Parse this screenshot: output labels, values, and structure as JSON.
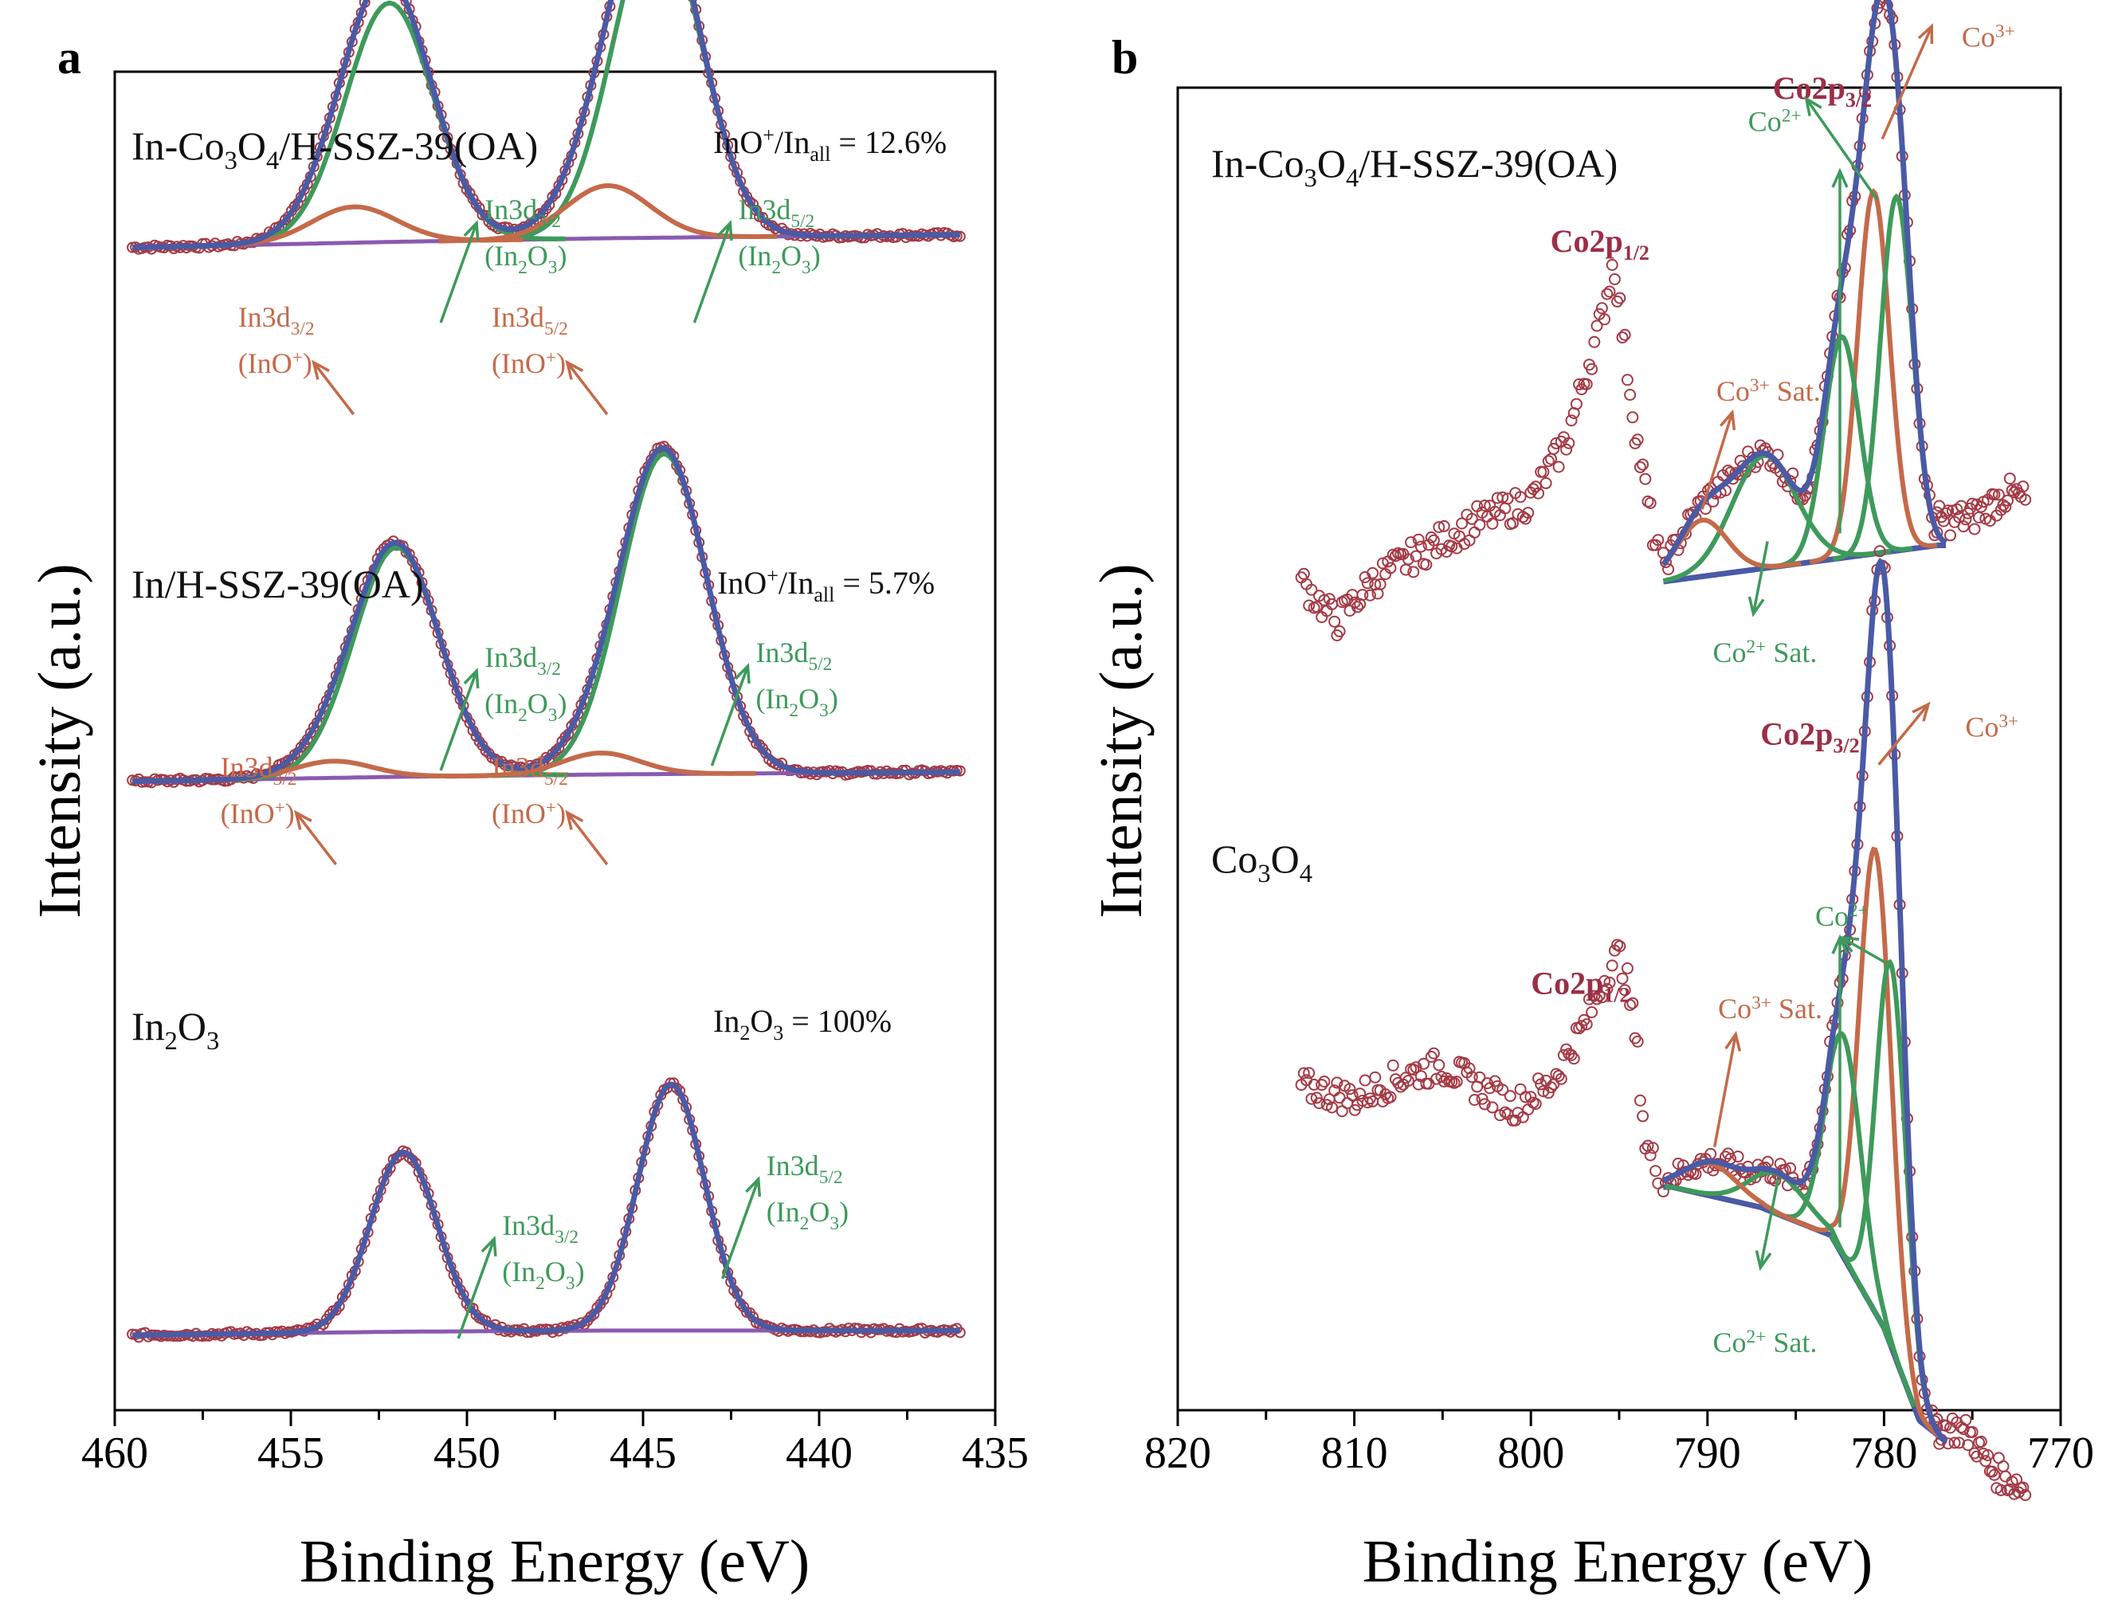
{
  "chart_data": [
    {
      "panel": "a",
      "type": "line",
      "subtype": "XPS spectra (In 3d)",
      "xlabel": "Binding Energy (eV)",
      "ylabel": "Intensity (a.u.)",
      "xlim": [
        460,
        435
      ],
      "xticks": [
        "460",
        "455",
        "450",
        "445",
        "440",
        "435"
      ],
      "series": [
        {
          "name": "In-Co3O4/H-SSZ-39(OA)",
          "sample_html": "In-Co<tspan dy='12' class='sub'>3</tspan><tspan dy='-12'>O</tspan><tspan dy='12' class='sub'>4</tspan><tspan dy='-12'>/H-SSZ-39(OA)</tspan>",
          "ratio_html": "InO<tspan dy='-14' class='sub'>+</tspan><tspan dy='14'>/In</tspan><tspan dy='10' class='sub'>all</tspan><tspan dy='-10'> = 12.6%</tspan>",
          "ratio_text": "InO+/Inall = 12.6%",
          "baseline_points": [
            [
              460,
              0.88
            ],
            [
              452,
              0.905
            ],
            [
              446,
              0.92
            ],
            [
              436,
              0.935
            ]
          ],
          "peaks": [
            {
              "label": "In3d3/2 (In2O3)",
              "center": 452.2,
              "height": 1.0,
              "width": 1.25,
              "color": "green"
            },
            {
              "label": "In3d5/2 (In2O3)",
              "center": 444.6,
              "height": 1.35,
              "width": 1.25,
              "color": "green"
            },
            {
              "label": "In3d3/2 (InO+)",
              "center": 453.2,
              "height": 0.15,
              "width": 1.2,
              "color": "orange"
            },
            {
              "label": "In3d5/2 (InO+)",
              "center": 446.0,
              "height": 0.22,
              "width": 1.2,
              "color": "orange"
            }
          ],
          "labels": [
            {
              "text": "In3d3/2 (In2O3)",
              "l1": "In3d<tspan dy='10' class='sub'>3/2</tspan>",
              "l2": "(In<tspan dy='10' class='sub'>2</tspan><tspan dy='-10'>O</tspan><tspan dy='10' class='sub'>3</tspan><tspan dy='-10'>)</tspan>",
              "color": "green",
              "at": [
                449.5,
                1.0
              ]
            },
            {
              "text": "In3d5/2 (In2O3)",
              "l1": "In3d<tspan dy='10' class='sub'>5/2</tspan>",
              "l2": "(In<tspan dy='10' class='sub'>2</tspan><tspan dy='-10'>O</tspan><tspan dy='10' class='sub'>3</tspan><tspan dy='-10'>)</tspan>",
              "color": "green",
              "at": [
                442.3,
                1.0
              ]
            },
            {
              "text": "In3d3/2 (InO+)",
              "l1": "In3d<tspan dy='10' class='sub'>3/2</tspan>",
              "l2": "(InO<tspan dy='-12' class='sub'>+</tspan><tspan dy='12'>)</tspan>",
              "color": "orange",
              "at": [
                456.5,
                0.55
              ]
            },
            {
              "text": "In3d5/2 (InO+)",
              "l1": "In3d<tspan dy='10' class='sub'>5/2</tspan>",
              "l2": "(InO<tspan dy='-12' class='sub'>+</tspan><tspan dy='12'>)</tspan>",
              "color": "orange",
              "at": [
                449.3,
                0.55
              ]
            }
          ]
        },
        {
          "name": "In/H-SSZ-39(OA)",
          "sample_html": "In/H-SSZ-39(OA)",
          "ratio_html": "InO<tspan dy='-14' class='sub'>+</tspan><tspan dy='14'>/In</tspan><tspan dy='10' class='sub'>all</tspan><tspan dy='-10'> = 5.7%</tspan>",
          "ratio_text": "InO+/Inall = 5.7%",
          "baseline_points": [
            [
              460,
              0.48
            ],
            [
              452,
              0.5
            ],
            [
              446,
              0.51
            ],
            [
              436,
              0.52
            ]
          ],
          "peaks": [
            {
              "label": "In3d3/2 (In2O3)",
              "center": 452.0,
              "height": 0.96,
              "width": 1.22,
              "color": "green"
            },
            {
              "label": "In3d5/2 (In2O3)",
              "center": 444.4,
              "height": 1.34,
              "width": 1.22,
              "color": "green"
            },
            {
              "label": "In3d3/2 (InO+)",
              "center": 453.8,
              "height": 0.07,
              "width": 1.1,
              "color": "orange"
            },
            {
              "label": "In3d5/2 (InO+)",
              "center": 446.2,
              "height": 0.09,
              "width": 1.1,
              "color": "orange"
            }
          ],
          "labels": [
            {
              "text": "In3d3/2 (In2O3)",
              "l1": "In3d<tspan dy='10' class='sub'>3/2</tspan>",
              "l2": "(In<tspan dy='10' class='sub'>2</tspan><tspan dy='-10'>O</tspan><tspan dy='10' class='sub'>3</tspan><tspan dy='-10'>)</tspan>",
              "color": "green",
              "at": [
                449.5,
                0.96
              ]
            },
            {
              "text": "In3d5/2 (In2O3)",
              "l1": "In3d<tspan dy='10' class='sub'>5/2</tspan>",
              "l2": "(In<tspan dy='10' class='sub'>2</tspan><tspan dy='-10'>O</tspan><tspan dy='10' class='sub'>3</tspan><tspan dy='-10'>)</tspan>",
              "color": "green",
              "at": [
                441.8,
                0.98
              ]
            },
            {
              "text": "In3d3/2 (InO+)",
              "l1": "In3d<tspan dy='10' class='sub'>3/2</tspan>",
              "l2": "(InO<tspan dy='-12' class='sub'>+</tspan><tspan dy='12'>)</tspan>",
              "color": "orange",
              "at": [
                457.0,
                0.5
              ]
            },
            {
              "text": "In3d5/2 (InO+)",
              "l1": "In3d<tspan dy='10' class='sub'>5/2</tspan>",
              "l2": "(InO<tspan dy='-12' class='sub'>+</tspan><tspan dy='12'>)</tspan>",
              "color": "orange",
              "at": [
                449.3,
                0.5
              ]
            }
          ]
        },
        {
          "name": "In2O3",
          "sample_html": "In<tspan dy='12' class='sub'>2</tspan><tspan dy='-12'>O</tspan><tspan dy='12' class='sub'>3</tspan>",
          "ratio_html": "In<tspan dy='10' class='sub'>2</tspan><tspan dy='-10'>O</tspan><tspan dy='10' class='sub'>3</tspan><tspan dy='-10'> = 100%</tspan>",
          "ratio_text": "In2O3 = 100%",
          "baseline_points": [
            [
              460,
              0.08
            ],
            [
              452,
              0.095
            ],
            [
              446,
              0.1
            ],
            [
              436,
              0.1
            ]
          ],
          "peaks": [
            {
              "label": "In3d3/2 (In2O3)",
              "center": 451.8,
              "height": 0.75,
              "width": 0.95,
              "color": "green"
            },
            {
              "label": "In3d5/2 (In2O3)",
              "center": 444.2,
              "height": 1.03,
              "width": 0.95,
              "color": "green"
            }
          ],
          "labels": [
            {
              "text": "In3d3/2 (In2O3)",
              "l1": "In3d<tspan dy='10' class='sub'>3/2</tspan>",
              "l2": "(In<tspan dy='10' class='sub'>2</tspan><tspan dy='-10'>O</tspan><tspan dy='10' class='sub'>3</tspan><tspan dy='-10'>)</tspan>",
              "color": "green",
              "at": [
                449.0,
                0.5
              ]
            },
            {
              "text": "In3d5/2 (In2O3)",
              "l1": "In3d<tspan dy='10' class='sub'>5/2</tspan>",
              "l2": "(In<tspan dy='10' class='sub'>2</tspan><tspan dy='-10'>O</tspan><tspan dy='10' class='sub'>3</tspan><tspan dy='-10'>)</tspan>",
              "color": "green",
              "at": [
                441.5,
                0.75
              ]
            }
          ]
        }
      ]
    },
    {
      "panel": "b",
      "type": "line",
      "subtype": "XPS spectra (Co 2p)",
      "xlabel": "Binding Energy (eV)",
      "ylabel": "Intensity (a.u.)",
      "xlim": [
        820,
        770
      ],
      "xticks": [
        "820",
        "810",
        "800",
        "790",
        "780",
        "770"
      ],
      "series": [
        {
          "name": "In-Co3O4/H-SSZ-39(OA)",
          "sample_html": "In-Co<tspan dy='12' class='sub'>3</tspan><tspan dy='-12'>O</tspan><tspan dy='12' class='sub'>4</tspan><tspan dy='-12'>/H-SSZ-39(OA)</tspan>",
          "baseline_points": [
            [
              792.5,
              0.0
            ],
            [
              777,
              0.09
            ]
          ],
          "peaks": [
            {
              "label": "Co3+",
              "center": 780.6,
              "height": 0.9,
              "width": 0.9,
              "color": "orange"
            },
            {
              "label": "Co2+",
              "center": 779.3,
              "height": 0.88,
              "width": 0.9,
              "color": "green"
            },
            {
              "label": "Co2+",
              "center": 782.4,
              "height": 0.55,
              "width": 1.0,
              "color": "green"
            },
            {
              "label": "Co2+ Sat.",
              "center": 786.8,
              "height": 0.28,
              "width": 1.8,
              "color": "green"
            },
            {
              "label": "Co3+ Sat.",
              "center": 790.3,
              "height": 0.14,
              "width": 1.4,
              "color": "orange"
            }
          ],
          "peak_labels": [
            {
              "text": "Co2p3/2",
              "html": "Co2p<tspan dy='10' class='sub'>3/2</tspan>",
              "kind": "co",
              "at": [
                786.3,
                1.2
              ]
            },
            {
              "text": "Co2p1/2",
              "html": "Co2p<tspan dy='10' class='sub'>1/2</tspan>",
              "kind": "co",
              "at": [
                798.9,
                0.82
              ]
            },
            {
              "text": "Co3+",
              "html": "Co<tspan dy='-12' class='sub'>3+</tspan>",
              "kind": "o",
              "at": [
                775.6,
                1.33
              ]
            },
            {
              "text": "Co2+",
              "html": "Co<tspan dy='-12' class='sub'>2+</tspan>",
              "kind": "g",
              "at": [
                787.7,
                1.12
              ]
            },
            {
              "text": "Co3+ Sat.",
              "html": "Co<tspan dy='-12' class='sub'>3+</tspan><tspan dy='12'> Sat.</tspan>",
              "kind": "o",
              "at": [
                789.5,
                0.45
              ]
            },
            {
              "text": "Co2+ Sat.",
              "html": "Co<tspan dy='-12' class='sub'>2+</tspan><tspan dy='12'> Sat.</tspan>",
              "kind": "g",
              "at": [
                789.7,
                -0.2
              ]
            }
          ],
          "raw_wide": [
            [
              813,
              0.0
            ],
            [
              811,
              -0.1
            ],
            [
              809,
              0.0
            ],
            [
              806,
              0.08
            ],
            [
              803,
              0.15
            ],
            [
              800,
              0.2
            ],
            [
              798,
              0.35
            ],
            [
              797,
              0.5
            ],
            [
              796,
              0.65
            ],
            [
              795.3,
              0.8
            ],
            [
              794.8,
              0.62
            ],
            [
              794,
              0.35
            ],
            [
              793,
              0.1
            ],
            [
              792.5,
              0.03
            ]
          ],
          "raw_tail": [
            [
              777,
              0.15
            ],
            [
              775,
              0.16
            ],
            [
              773,
              0.22
            ],
            [
              772,
              0.2
            ]
          ]
        },
        {
          "name": "Co3O4",
          "sample_html": "Co<tspan dy='12' class='sub'>3</tspan><tspan dy='-12'>O</tspan><tspan dy='12' class='sub'>4</tspan>",
          "baseline_points": [
            [
              792,
              0.0
            ],
            [
              787,
              -0.05
            ],
            [
              783,
              -0.12
            ],
            [
              780,
              -0.35
            ],
            [
              778,
              -0.58
            ],
            [
              776,
              -0.65
            ]
          ],
          "peaks": [
            {
              "label": "Co3+",
              "center": 780.5,
              "height": 1.15,
              "width": 0.9,
              "color": "orange"
            },
            {
              "label": "Co2+",
              "center": 779.6,
              "height": 0.95,
              "width": 0.85,
              "color": "green"
            },
            {
              "label": "Co2+",
              "center": 782.3,
              "height": 0.55,
              "width": 1.0,
              "color": "green"
            },
            {
              "label": "Co2+ Sat.",
              "center": 786.0,
              "height": 0.1,
              "width": 1.6,
              "color": "green"
            },
            {
              "label": "Co3+ Sat.",
              "center": 789.8,
              "height": 0.08,
              "width": 1.5,
              "color": "orange"
            }
          ],
          "peak_labels": [
            {
              "text": "Co2p3/2",
              "html": "Co2p<tspan dy='10' class='sub'>3/2</tspan>",
              "kind": "co",
              "at": [
                787.0,
                1.1
              ]
            },
            {
              "text": "Co2p1/2",
              "html": "Co2p<tspan dy='10' class='sub'>1/2</tspan>",
              "kind": "co",
              "at": [
                800.0,
                0.48
              ]
            },
            {
              "text": "Co3+",
              "html": "Co<tspan dy='-12' class='sub'>3+</tspan>",
              "kind": "o",
              "at": [
                775.4,
                1.12
              ]
            },
            {
              "text": "Co2+",
              "html": "Co<tspan dy='-12' class='sub'>2+</tspan>",
              "kind": "g",
              "at": [
                783.9,
                0.65
              ]
            },
            {
              "text": "Co3+ Sat.",
              "html": "Co<tspan dy='-12' class='sub'>3+</tspan><tspan dy='12'> Sat.</tspan>",
              "kind": "o",
              "at": [
                789.4,
                0.42
              ]
            },
            {
              "text": "Co2+ Sat.",
              "html": "Co<tspan dy='-12' class='sub'>2+</tspan><tspan dy='12'> Sat.</tspan>",
              "kind": "g",
              "at": [
                789.7,
                -0.41
              ]
            }
          ],
          "raw_wide": [
            [
              813,
              0.25
            ],
            [
              810,
              0.22
            ],
            [
              807,
              0.28
            ],
            [
              805,
              0.3
            ],
            [
              803,
              0.25
            ],
            [
              801,
              0.2
            ],
            [
              799,
              0.25
            ],
            [
              797,
              0.4
            ],
            [
              795.5,
              0.55
            ],
            [
              795,
              0.58
            ],
            [
              794.5,
              0.5
            ],
            [
              794,
              0.35
            ],
            [
              793.5,
              0.1
            ],
            [
              792.5,
              0.02
            ]
          ],
          "raw_tail": [
            [
              776,
              -0.6
            ],
            [
              775,
              -0.62
            ],
            [
              774,
              -0.7
            ],
            [
              772,
              -0.75
            ]
          ]
        }
      ]
    }
  ],
  "panels": {
    "a": {
      "letter": "a",
      "xlabel": "Binding Energy (eV)",
      "ylabel": "Intensity (a.u.)"
    },
    "b": {
      "letter": "b",
      "xlabel": "Binding Energy (eV)",
      "ylabel": "Intensity (a.u.)"
    }
  },
  "colors": {
    "dots": "#a33a45",
    "envelope": "#4a5aa5",
    "background": "#8a5ab0",
    "green": "#3e9a5b",
    "orange": "#c46a4a",
    "co_label": "#9b2f47"
  }
}
